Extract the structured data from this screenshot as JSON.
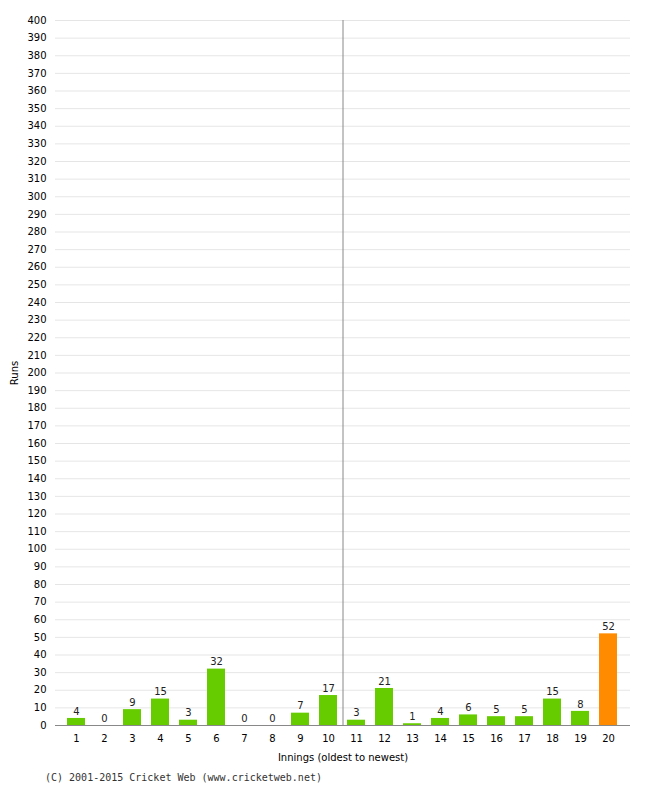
{
  "chart_data": {
    "type": "bar",
    "categories": [
      1,
      2,
      3,
      4,
      5,
      6,
      7,
      8,
      9,
      10,
      11,
      12,
      13,
      14,
      15,
      16,
      17,
      18,
      19,
      20
    ],
    "values": [
      4,
      0,
      9,
      15,
      3,
      32,
      0,
      0,
      7,
      17,
      3,
      21,
      1,
      4,
      6,
      5,
      5,
      15,
      8,
      52
    ],
    "colors": [
      "#66cc00",
      "#66cc00",
      "#66cc00",
      "#66cc00",
      "#66cc00",
      "#66cc00",
      "#66cc00",
      "#66cc00",
      "#66cc00",
      "#66cc00",
      "#66cc00",
      "#66cc00",
      "#66cc00",
      "#66cc00",
      "#66cc00",
      "#66cc00",
      "#66cc00",
      "#66cc00",
      "#66cc00",
      "#ff8c00"
    ],
    "xlabel": "Innings (oldest to newest)",
    "ylabel": "Runs",
    "ylim": [
      0,
      400
    ],
    "yticks": [
      0,
      10,
      20,
      30,
      40,
      50,
      60,
      70,
      80,
      90,
      100,
      110,
      120,
      130,
      140,
      150,
      160,
      170,
      180,
      190,
      200,
      210,
      220,
      230,
      240,
      250,
      260,
      270,
      280,
      290,
      300,
      310,
      320,
      330,
      340,
      350,
      360,
      370,
      380,
      390,
      400
    ],
    "grid": true,
    "data_labels": true,
    "caption": "(C) 2001-2015 Cricket Web (www.cricketweb.net)"
  }
}
